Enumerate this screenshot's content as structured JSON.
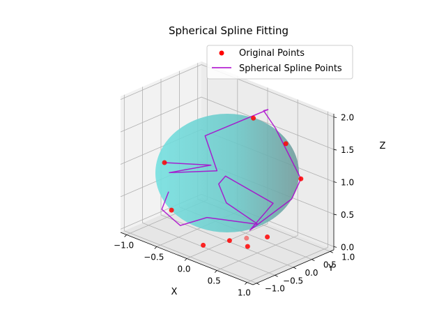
{
  "chart_data": {
    "type": "scatter",
    "projection": "3d",
    "title": "Spherical Spline Fitting",
    "xlabel": "X",
    "ylabel": "Y",
    "zlabel": "Z",
    "xlim": [
      -1.1,
      1.1
    ],
    "ylim": [
      -1.1,
      1.1
    ],
    "zlim": [
      -0.05,
      2.05
    ],
    "xticks": [
      "−1.0",
      "−0.5",
      "0.0",
      "0.5",
      "1.0"
    ],
    "yticks": [
      "−1.0",
      "−0.5",
      "0.0",
      "0.5",
      "1.0"
    ],
    "zticks": [
      "0.0",
      "0.5",
      "1.0",
      "1.5",
      "2.0"
    ],
    "grid": true,
    "legend_position": "upper right",
    "sphere": {
      "center": [
        0,
        0,
        1
      ],
      "radius": 1,
      "color": "#5bd6d6"
    },
    "series": [
      {
        "name": "Original Points",
        "kind": "scatter",
        "color": "#ff0000",
        "points": [
          [
            0.1,
            0.55,
            1.75
          ],
          [
            0.7,
            0.45,
            1.6
          ],
          [
            0.95,
            0.45,
            1.15
          ],
          [
            -0.95,
            -0.15,
            0.85
          ],
          [
            -0.65,
            -0.45,
            0.3
          ],
          [
            0.85,
            -0.3,
            0.4
          ],
          [
            0.2,
            -0.98,
            0.2
          ],
          [
            0.2,
            0.2,
            0.02
          ],
          [
            0.4,
            -0.1,
            0.04
          ],
          [
            0.1,
            -0.1,
            0.02
          ]
        ]
      },
      {
        "name": "Spherical Spline Points",
        "kind": "line",
        "color": "#aa00cc",
        "points": [
          [
            -0.95,
            -0.15,
            0.85
          ],
          [
            -0.3,
            0.05,
            1.0
          ],
          [
            -0.9,
            -0.1,
            0.7
          ],
          [
            -0.2,
            0.05,
            0.95
          ],
          [
            -0.55,
            0.3,
            1.3
          ],
          [
            0.25,
            0.7,
            1.9
          ],
          [
            0.3,
            0.5,
            1.95
          ],
          [
            0.5,
            0.5,
            1.75
          ],
          [
            0.95,
            0.45,
            1.15
          ],
          [
            0.95,
            0.2,
            0.9
          ],
          [
            0.5,
            -0.2,
            0.35
          ],
          [
            0.55,
            0.35,
            0.65
          ],
          [
            -0.15,
            0.2,
            0.85
          ],
          [
            -0.05,
            -0.15,
            0.85
          ],
          [
            0.2,
            -0.35,
            0.7
          ],
          [
            0.45,
            0.1,
            0.35
          ],
          [
            0.0,
            -0.55,
            0.45
          ],
          [
            -0.2,
            -0.95,
            0.35
          ],
          [
            -0.75,
            -0.55,
            0.3
          ],
          [
            -0.85,
            -0.2,
            0.45
          ]
        ]
      }
    ]
  }
}
